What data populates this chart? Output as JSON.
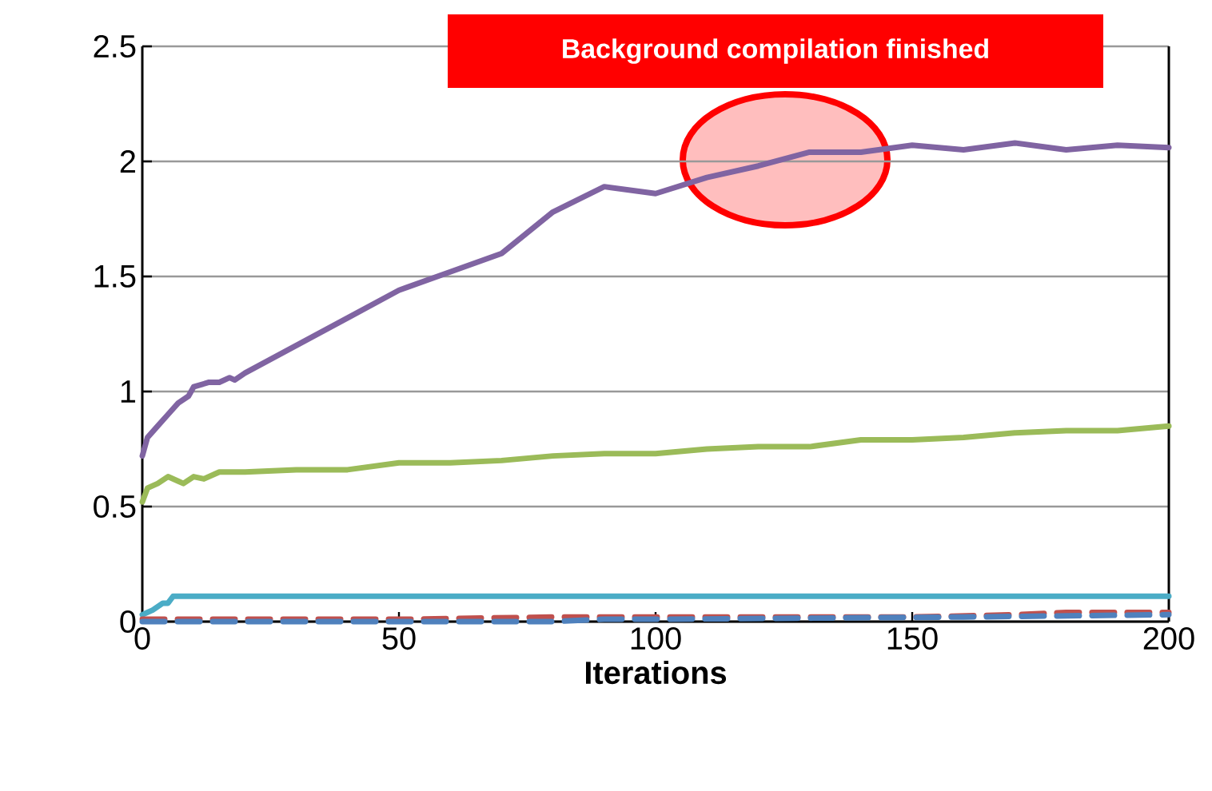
{
  "chart_data": {
    "type": "line",
    "xlabel": "Iterations",
    "xlim": [
      0,
      200
    ],
    "ylim": [
      0,
      2.5
    ],
    "xticks": [
      0,
      50,
      100,
      150,
      200
    ],
    "yticks": [
      0,
      0.5,
      1,
      1.5,
      2,
      2.5
    ],
    "grid": "y",
    "annotations": [
      "Background compilation finished"
    ],
    "series": [
      {
        "color": "#8064a2",
        "line_style": "solid",
        "x": [
          0,
          1,
          3,
          5,
          7,
          9,
          10,
          13,
          15,
          17,
          18,
          20,
          30,
          40,
          50,
          60,
          70,
          80,
          90,
          100,
          110,
          120,
          130,
          140,
          150,
          160,
          170,
          180,
          190,
          200
        ],
        "values": [
          0.72,
          0.8,
          0.85,
          0.9,
          0.95,
          0.98,
          1.02,
          1.04,
          1.04,
          1.06,
          1.05,
          1.08,
          1.2,
          1.32,
          1.44,
          1.52,
          1.6,
          1.78,
          1.89,
          1.86,
          1.93,
          1.98,
          2.04,
          2.04,
          2.07,
          2.05,
          2.08,
          2.05,
          2.07,
          2.06
        ]
      },
      {
        "color": "#9bbb59",
        "line_style": "solid",
        "x": [
          0,
          1,
          3,
          5,
          7,
          8,
          10,
          12,
          15,
          20,
          30,
          40,
          50,
          60,
          70,
          80,
          90,
          100,
          110,
          120,
          130,
          140,
          150,
          160,
          170,
          180,
          190,
          200
        ],
        "values": [
          0.52,
          0.58,
          0.6,
          0.63,
          0.61,
          0.6,
          0.63,
          0.62,
          0.65,
          0.65,
          0.66,
          0.66,
          0.69,
          0.69,
          0.7,
          0.72,
          0.73,
          0.73,
          0.75,
          0.76,
          0.76,
          0.79,
          0.79,
          0.8,
          0.82,
          0.83,
          0.83,
          0.85
        ]
      },
      {
        "color": "#4bacc6",
        "line_style": "solid",
        "x": [
          0,
          2,
          4,
          5,
          6,
          200
        ],
        "values": [
          0.03,
          0.05,
          0.08,
          0.08,
          0.11,
          0.11
        ]
      },
      {
        "color": "#c0504d",
        "line_style": "dashed",
        "x": [
          0,
          50,
          80,
          100,
          150,
          170,
          180,
          200
        ],
        "values": [
          0.01,
          0.01,
          0.02,
          0.02,
          0.02,
          0.03,
          0.04,
          0.04
        ]
      },
      {
        "color": "#4f81bd",
        "line_style": "dashed",
        "x": [
          0,
          50,
          80,
          90,
          100,
          160,
          200
        ],
        "values": [
          0,
          0,
          0,
          0.01,
          0.01,
          0.02,
          0.03
        ]
      }
    ]
  }
}
